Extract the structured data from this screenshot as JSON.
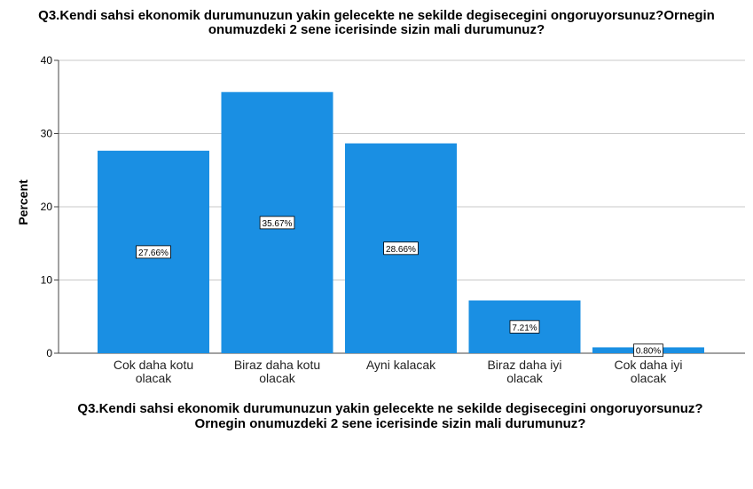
{
  "chart_data": {
    "type": "bar",
    "title_lines": [
      "Q3.Kendi sahsi ekonomik durumunuzun yakin gelecekte ne sekilde degisecegini ongoruyorsunuz?Ornegin",
      "onumuzdeki 2 sene icerisinde sizin mali durumunuz?"
    ],
    "xlabel_lines": [
      "Q3.Kendi sahsi ekonomik durumunuzun yakin gelecekte ne sekilde degisecegini ongoruyorsunuz?",
      "Ornegin onumuzdeki 2 sene icerisinde sizin mali durumunuz?"
    ],
    "ylabel": "Percent",
    "ylim": [
      0,
      40
    ],
    "yticks": [
      0,
      10,
      20,
      30,
      40
    ],
    "categories": [
      [
        "Cok daha kotu",
        "olacak"
      ],
      [
        "Biraz daha kotu",
        "olacak"
      ],
      [
        "Ayni kalacak"
      ],
      [
        "Biraz daha iyi",
        "olacak"
      ],
      [
        "Cok daha iyi",
        "olacak"
      ]
    ],
    "values": [
      27.66,
      35.67,
      28.66,
      7.21,
      0.8
    ],
    "data_labels": [
      "27.66%",
      "35.67%",
      "28.66%",
      "7.21%",
      "0.80%"
    ],
    "bar_color": "#1a8fe3",
    "grid": true
  }
}
